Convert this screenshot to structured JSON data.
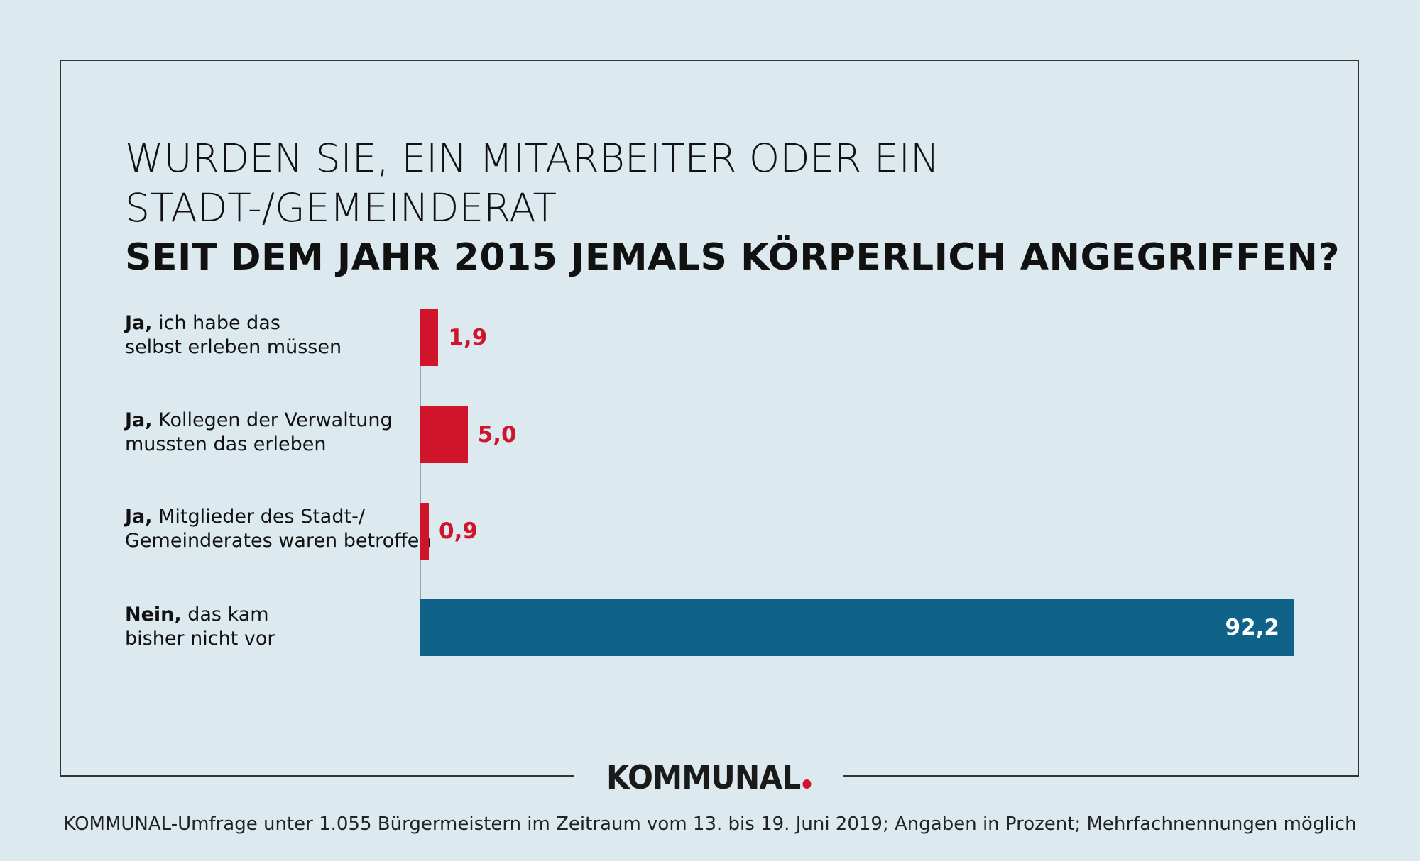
{
  "chart_data": {
    "type": "bar",
    "orientation": "horizontal",
    "title_line1": "WURDEN SIE, EIN MITARBEITER ODER EIN STADT-/GEMEINDERAT",
    "title_line2": "SEIT DEM JAHR 2015 JEMALS KÖRPERLICH ANGEGRIFFEN?",
    "categories": [
      {
        "lead": "Ja,",
        "rest1": " ich habe das",
        "line2": "selbst erleben müssen"
      },
      {
        "lead": "Ja,",
        "rest1": " Kollegen der Verwaltung",
        "line2": "mussten das erleben"
      },
      {
        "lead": "Ja,",
        "rest1": " Mitglieder des Stadt-/",
        "line2": "Gemeinderates waren betroffen"
      },
      {
        "lead": "Nein,",
        "rest1": " das kam",
        "line2": "bisher nicht vor"
      }
    ],
    "values": [
      1.9,
      5.0,
      0.9,
      92.2
    ],
    "value_labels": [
      "1,9",
      "5,0",
      "0,9",
      "92,2"
    ],
    "bar_colors": [
      "#d0142c",
      "#d0142c",
      "#d0142c",
      "#106388"
    ],
    "label_colors_outside": "#d0142c",
    "label_color_inside": "#ffffff",
    "xlim": [
      0,
      92.2
    ],
    "unit": "Prozent"
  },
  "brand": "KOMMUNAL",
  "brand_dot_color": "#d0142c",
  "source": "KOMMUNAL-Umfrage unter 1.055 Bürgermeistern im Zeitraum vom 13. bis 19. Juni 2019; Angaben in Prozent; Mehrfachnennungen möglich"
}
